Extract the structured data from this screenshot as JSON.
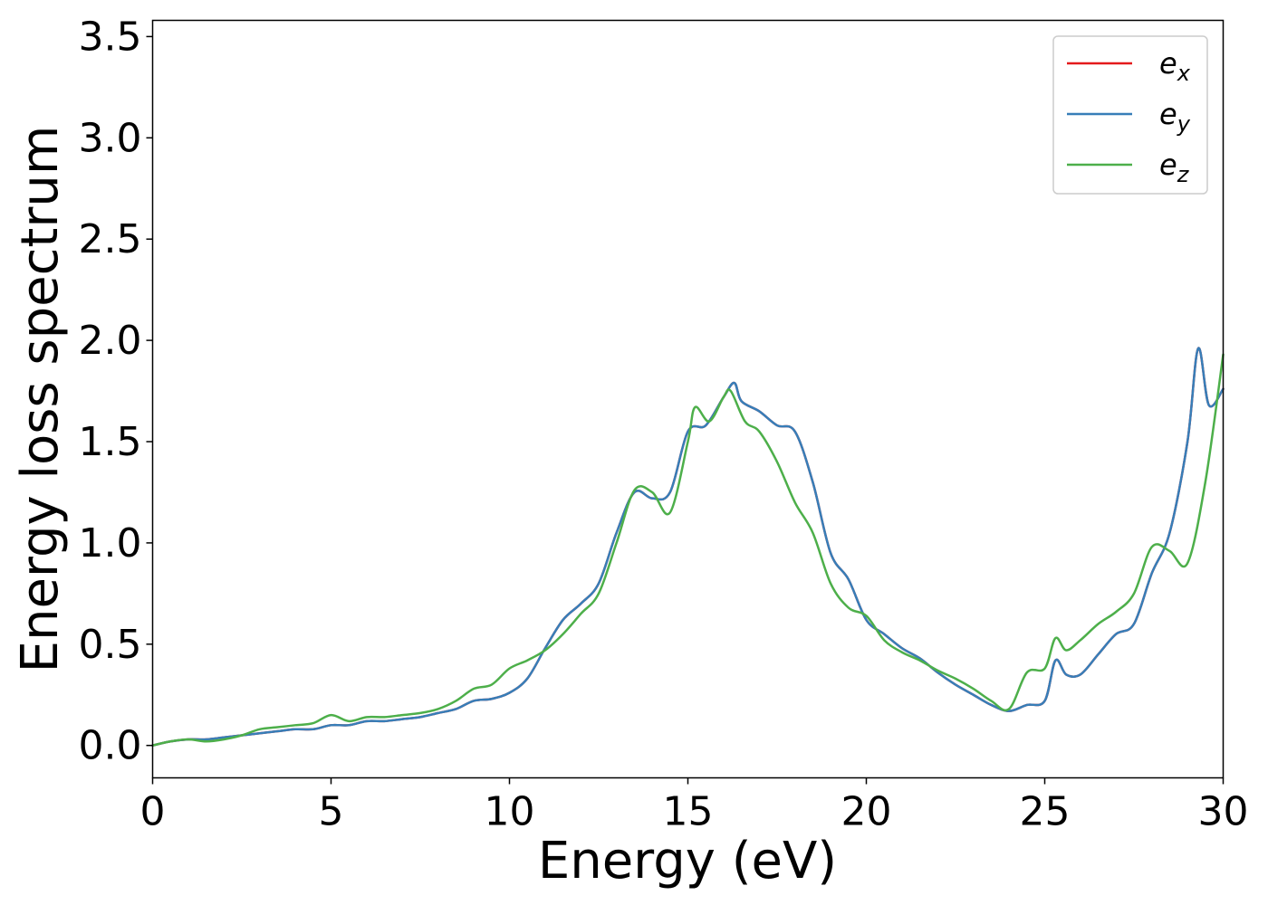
{
  "chart_data": {
    "type": "line",
    "title": "",
    "xlabel": "Energy (eV)",
    "ylabel": "Energy loss spectrum",
    "xlim": [
      0,
      30
    ],
    "ylim": [
      -0.16,
      3.58
    ],
    "xticks": [
      0,
      5,
      10,
      15,
      20,
      25,
      30
    ],
    "xtick_labels": [
      "0",
      "5",
      "10",
      "15",
      "20",
      "25",
      "30"
    ],
    "yticks": [
      0.0,
      0.5,
      1.0,
      1.5,
      2.0,
      2.5,
      3.0,
      3.5
    ],
    "ytick_labels": [
      "0.0",
      "0.5",
      "1.0",
      "1.5",
      "2.0",
      "2.5",
      "3.0",
      "3.5"
    ],
    "grid": false,
    "legend_position": "top-right",
    "series": [
      {
        "name": "e",
        "subscript": "x",
        "color": "#e41a1c",
        "x": [
          0,
          0.5,
          1,
          1.5,
          2,
          2.5,
          3,
          3.5,
          4,
          4.5,
          5,
          5.5,
          6,
          6.5,
          7,
          7.5,
          8,
          8.5,
          9,
          9.5,
          10,
          10.5,
          11,
          11.5,
          12,
          12.5,
          13,
          13.5,
          14,
          14.5,
          15,
          15.5,
          16,
          16.3,
          16.5,
          17,
          17.5,
          18,
          18.5,
          19,
          19.5,
          20,
          20.5,
          21,
          21.5,
          22,
          22.5,
          23,
          23.5,
          24,
          24.5,
          25,
          25.3,
          25.6,
          26,
          26.5,
          27,
          27.5,
          28,
          28.5,
          29,
          29.3,
          29.6,
          30
        ],
        "y": [
          0.0,
          0.02,
          0.03,
          0.03,
          0.04,
          0.05,
          0.06,
          0.07,
          0.08,
          0.08,
          0.1,
          0.1,
          0.12,
          0.12,
          0.13,
          0.14,
          0.16,
          0.18,
          0.22,
          0.23,
          0.26,
          0.33,
          0.48,
          0.62,
          0.7,
          0.8,
          1.05,
          1.25,
          1.22,
          1.25,
          1.55,
          1.58,
          1.72,
          1.79,
          1.7,
          1.65,
          1.58,
          1.55,
          1.3,
          0.95,
          0.82,
          0.62,
          0.55,
          0.48,
          0.43,
          0.36,
          0.3,
          0.25,
          0.2,
          0.17,
          0.2,
          0.22,
          0.42,
          0.35,
          0.35,
          0.45,
          0.55,
          0.6,
          0.85,
          1.05,
          1.5,
          1.96,
          1.68,
          1.76
        ]
      },
      {
        "name": "e",
        "subscript": "y",
        "color": "#377eb8",
        "x": [
          0,
          0.5,
          1,
          1.5,
          2,
          2.5,
          3,
          3.5,
          4,
          4.5,
          5,
          5.5,
          6,
          6.5,
          7,
          7.5,
          8,
          8.5,
          9,
          9.5,
          10,
          10.5,
          11,
          11.5,
          12,
          12.5,
          13,
          13.5,
          14,
          14.5,
          15,
          15.5,
          16,
          16.3,
          16.5,
          17,
          17.5,
          18,
          18.5,
          19,
          19.5,
          20,
          20.5,
          21,
          21.5,
          22,
          22.5,
          23,
          23.5,
          24,
          24.5,
          25,
          25.3,
          25.6,
          26,
          26.5,
          27,
          27.5,
          28,
          28.5,
          29,
          29.3,
          29.6,
          30
        ],
        "y": [
          0.0,
          0.02,
          0.03,
          0.03,
          0.04,
          0.05,
          0.06,
          0.07,
          0.08,
          0.08,
          0.1,
          0.1,
          0.12,
          0.12,
          0.13,
          0.14,
          0.16,
          0.18,
          0.22,
          0.23,
          0.26,
          0.33,
          0.48,
          0.62,
          0.7,
          0.8,
          1.05,
          1.25,
          1.22,
          1.25,
          1.55,
          1.58,
          1.72,
          1.79,
          1.7,
          1.65,
          1.58,
          1.55,
          1.3,
          0.95,
          0.82,
          0.62,
          0.55,
          0.48,
          0.43,
          0.36,
          0.3,
          0.25,
          0.2,
          0.17,
          0.2,
          0.22,
          0.42,
          0.35,
          0.35,
          0.45,
          0.55,
          0.6,
          0.85,
          1.05,
          1.5,
          1.96,
          1.68,
          1.76
        ]
      },
      {
        "name": "e",
        "subscript": "z",
        "color": "#4daf4a",
        "x": [
          0,
          0.5,
          1,
          1.5,
          2,
          2.5,
          3,
          3.5,
          4,
          4.5,
          5,
          5.5,
          6,
          6.5,
          7,
          7.5,
          8,
          8.5,
          9,
          9.5,
          10,
          10.5,
          11,
          11.5,
          12,
          12.5,
          13,
          13.5,
          14,
          14.5,
          15,
          15.2,
          15.6,
          16,
          16.2,
          16.6,
          17,
          17.5,
          18,
          18.5,
          19,
          19.5,
          20,
          20.5,
          21,
          21.5,
          22,
          22.5,
          23,
          23.5,
          24,
          24.5,
          25,
          25.3,
          25.6,
          26,
          26.5,
          27,
          27.5,
          28,
          28.5,
          29,
          29.5,
          30
        ],
        "y": [
          0.0,
          0.02,
          0.03,
          0.02,
          0.03,
          0.05,
          0.08,
          0.09,
          0.1,
          0.11,
          0.15,
          0.12,
          0.14,
          0.14,
          0.15,
          0.16,
          0.18,
          0.22,
          0.28,
          0.3,
          0.38,
          0.42,
          0.47,
          0.55,
          0.65,
          0.75,
          1.0,
          1.26,
          1.25,
          1.15,
          1.5,
          1.67,
          1.6,
          1.72,
          1.75,
          1.6,
          1.55,
          1.4,
          1.2,
          1.05,
          0.8,
          0.68,
          0.64,
          0.52,
          0.46,
          0.42,
          0.37,
          0.33,
          0.28,
          0.22,
          0.18,
          0.36,
          0.38,
          0.53,
          0.47,
          0.52,
          0.6,
          0.66,
          0.75,
          0.98,
          0.96,
          0.9,
          1.3,
          1.93
        ]
      }
    ]
  }
}
